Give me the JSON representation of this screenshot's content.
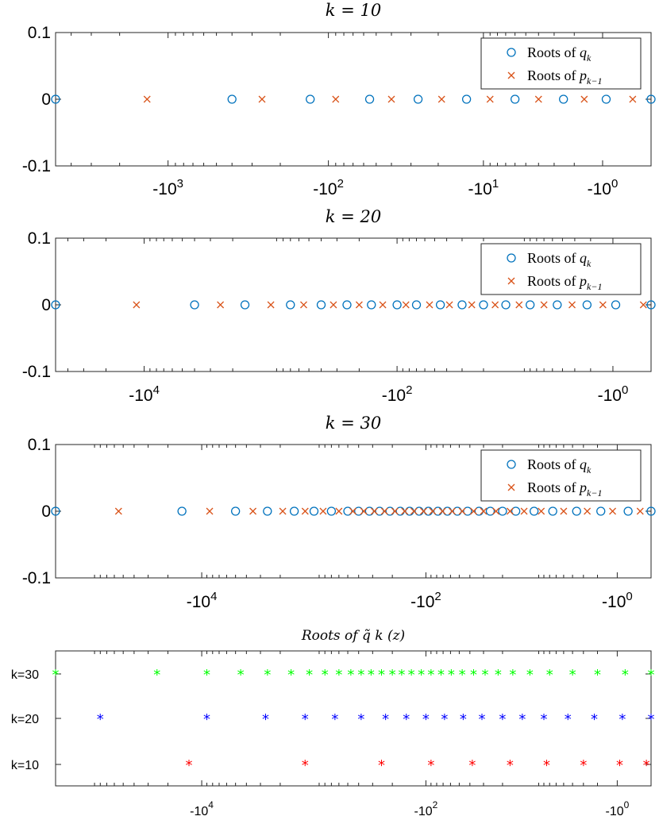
{
  "chart_data": [
    {
      "type": "scatter",
      "title": "k = 10",
      "x_scale": "symlog-negative",
      "xlim": [
        -5000,
        0
      ],
      "ylim": [
        -0.1,
        0.1
      ],
      "x_ticks": [
        -1000,
        -100,
        -10,
        -1
      ],
      "x_tick_labels": [
        "-10 3",
        "-10 2",
        "-10 1",
        "-10 0"
      ],
      "y_ticks": [
        0.1,
        0,
        -0.1
      ],
      "y_tick_labels": [
        "0.1",
        "0",
        "-0.1"
      ],
      "legend": {
        "position": "top-right",
        "entries": [
          "Roots of q k",
          "Roots of p k−1"
        ]
      },
      "series": [
        {
          "name": "Roots of q k",
          "marker": "o",
          "color": "#0072BD",
          "x": [
            -5000,
            -400,
            -130,
            -55,
            -27,
            -13,
            -6,
            -2.5,
            -0.9,
            0
          ]
        },
        {
          "name": "Roots of p k−1",
          "marker": "x",
          "color": "#D95319",
          "x": [
            -1350,
            -260,
            -90,
            -40,
            -19,
            -9,
            -4,
            -1.6,
            -0.3
          ]
        }
      ]
    },
    {
      "type": "scatter",
      "title": "k = 20",
      "x_scale": "symlog-negative",
      "xlim": [
        -50000,
        0
      ],
      "ylim": [
        -0.1,
        0.1
      ],
      "x_ticks": [
        -10000,
        -100,
        -1
      ],
      "x_tick_labels": [
        "-10 4",
        "-10 2",
        "-10 0"
      ],
      "y_ticks": [
        0.1,
        0,
        -0.1
      ],
      "y_tick_labels": [
        "0.1",
        "0",
        "-0.1"
      ],
      "legend": {
        "position": "top-right",
        "entries": [
          "Roots of q k",
          "Roots of p k−1"
        ]
      },
      "series": [
        {
          "name": "Roots of q k",
          "marker": "o",
          "color": "#0072BD",
          "x": [
            -50000,
            -4000,
            -1600,
            -700,
            -400,
            -250,
            -160,
            -100,
            -70,
            -45,
            -30,
            -20,
            -13,
            -8,
            -4.5,
            -2.2,
            -0.9,
            0
          ]
        },
        {
          "name": "Roots of p k−1",
          "marker": "x",
          "color": "#D95319",
          "x": [
            -11500,
            -2500,
            -1000,
            -550,
            -320,
            -200,
            -130,
            -85,
            -55,
            -38,
            -25,
            -16,
            -10,
            -6,
            -3.2,
            -1.4,
            -0.15
          ]
        }
      ]
    },
    {
      "type": "scatter",
      "title": "k = 30",
      "x_scale": "symlog-negative",
      "xlim": [
        -200000,
        0
      ],
      "ylim": [
        -0.1,
        0.1
      ],
      "x_ticks": [
        -10000,
        -100,
        -1
      ],
      "x_tick_labels": [
        "-10 4",
        "-10 2",
        "-10 0"
      ],
      "y_ticks": [
        0.1,
        0,
        -0.1
      ],
      "y_tick_labels": [
        "0.1",
        "0",
        "-0.1"
      ],
      "legend": {
        "position": "top-right",
        "entries": [
          "Roots of q k",
          "Roots of p k−1"
        ]
      },
      "series": [
        {
          "name": "Roots of q k",
          "marker": "o",
          "color": "#0072BD",
          "x": [
            -200000,
            -15000,
            -5000,
            -2600,
            -1500,
            -1000,
            -700,
            -500,
            -400,
            -320,
            -260,
            -210,
            -170,
            -140,
            -115,
            -95,
            -78,
            -64,
            -52,
            -42,
            -33,
            -26,
            -20,
            -15,
            -10,
            -6.5,
            -3.6,
            -1.8,
            -0.6,
            0
          ]
        },
        {
          "name": "Roots of p k−1",
          "marker": "x",
          "color": "#D95319",
          "x": [
            -55000,
            -8500,
            -3500,
            -1900,
            -1200,
            -830,
            -600,
            -450,
            -360,
            -290,
            -235,
            -190,
            -155,
            -128,
            -105,
            -87,
            -71,
            -58,
            -47,
            -37,
            -30,
            -23,
            -17,
            -12.5,
            -8.5,
            -5,
            -2.7,
            -1.2,
            -0.25
          ]
        }
      ]
    },
    {
      "type": "scatter",
      "title": "Roots of q̃ k (z)",
      "x_scale": "symlog-negative",
      "xlim": [
        -200000,
        0
      ],
      "x_ticks": [
        -10000,
        -100,
        -1
      ],
      "x_tick_labels": [
        "-10 4",
        "-10 2",
        "-10 0"
      ],
      "categories": [
        "k=30",
        "k=20",
        "k=10"
      ],
      "series": [
        {
          "name": "k=30",
          "marker": "*",
          "color": "#00FF00",
          "x": [
            -200000,
            -25000,
            -9000,
            -4500,
            -2600,
            -1600,
            -1100,
            -800,
            -600,
            -470,
            -380,
            -310,
            -250,
            -200,
            -165,
            -135,
            -110,
            -90,
            -73,
            -59,
            -47,
            -37,
            -29,
            -22,
            -16,
            -11,
            -7,
            -4,
            -2,
            -0.7,
            0
          ]
        },
        {
          "name": "k=20",
          "marker": "*",
          "color": "#0000FF",
          "x": [
            -80000,
            -9000,
            -2700,
            -1200,
            -650,
            -380,
            -230,
            -150,
            -100,
            -68,
            -46,
            -31,
            -20,
            -13,
            -8,
            -4.5,
            -2.2,
            -0.8,
            0
          ]
        },
        {
          "name": "k=10",
          "marker": "*",
          "color": "#FF0000",
          "x": [
            -13000,
            -1200,
            -250,
            -90,
            -38,
            -17,
            -7.5,
            -3,
            -0.9,
            -0.1
          ]
        }
      ]
    }
  ]
}
